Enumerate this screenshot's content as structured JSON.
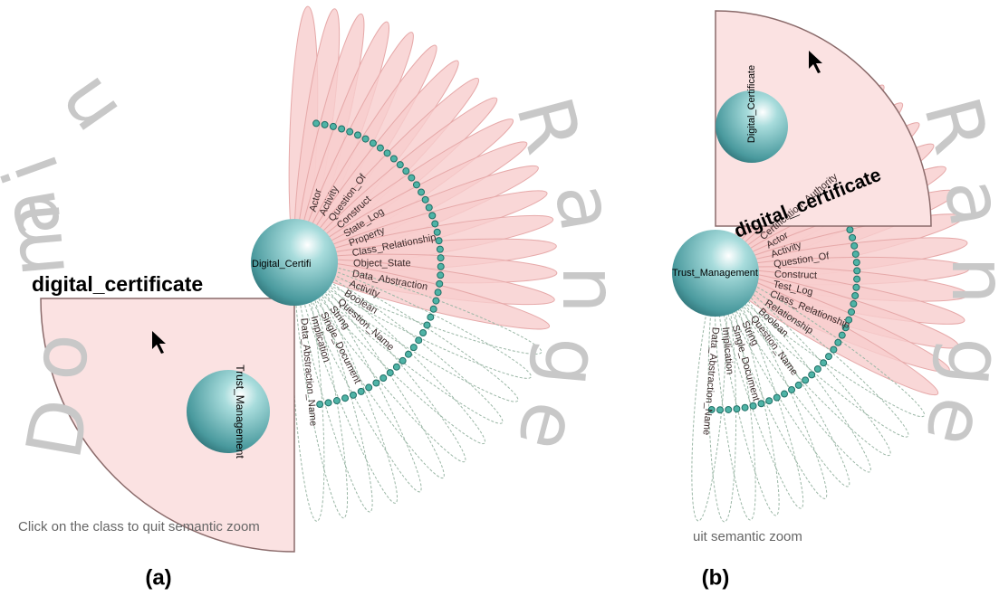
{
  "panels": [
    {
      "caption": "(a)",
      "zoom_title": "digital_certificate",
      "center_node": "Digital_Certifi",
      "inner_node": "Trust_Management",
      "hint": "Click on the class to quit semantic zoom",
      "domain_letters": [
        "D",
        "o",
        "m",
        "a",
        "i",
        "n"
      ],
      "range_letters": [
        "R",
        "a",
        "n",
        "g",
        "e"
      ],
      "petal_labels": [
        "Actor",
        "Activity",
        "Question_Of",
        "Construct",
        "State_Log",
        "Property",
        "Class_Relationship",
        "Object_State",
        "Data_Abstraction",
        "Activity",
        "Boolean",
        "Question_Name",
        "String",
        "Single_Document",
        "Implication",
        "Data_Abstraction_Name"
      ]
    },
    {
      "caption": "(b)",
      "zoom_title": "digital_certificate",
      "center_node": "Trust_Management",
      "inner_node": "Digital_Certificate",
      "hint": "uit semantic zoom",
      "range_letters": [
        "R",
        "a",
        "n",
        "g",
        "e"
      ],
      "petal_labels": [
        "Certification_Authority",
        "Actor",
        "Activity",
        "Question_Of",
        "Construct",
        "Test_Log",
        "Class_Relationship",
        "Relationship",
        "Boolean",
        "Question_Name",
        "String",
        "Single_Document",
        "Implication",
        "Data_Abstraction_Name"
      ]
    }
  ]
}
